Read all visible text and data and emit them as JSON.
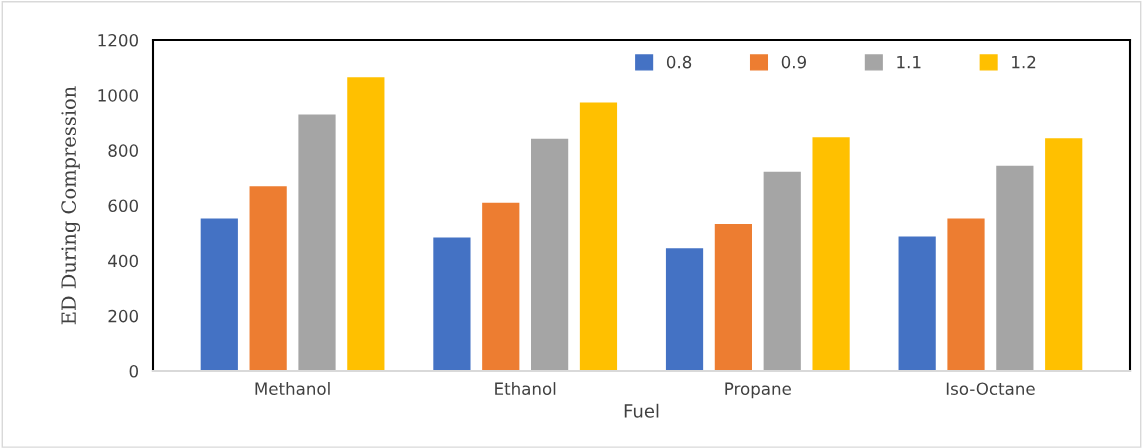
{
  "chart_data": {
    "type": "bar",
    "xlabel": "Fuel",
    "ylabel": "ED During Compression",
    "categories": [
      "Methanol",
      "Ethanol",
      "Propane",
      "Iso-Octane"
    ],
    "series": [
      {
        "name": "0.8",
        "color": "#4472c4",
        "values": [
          553,
          484,
          445,
          488
        ]
      },
      {
        "name": "0.9",
        "color": "#ed7d31",
        "values": [
          670,
          610,
          533,
          553
        ]
      },
      {
        "name": "1.1",
        "color": "#a5a5a5",
        "values": [
          930,
          842,
          722,
          744
        ]
      },
      {
        "name": "1.2",
        "color": "#ffc000",
        "values": [
          1065,
          973,
          847,
          844
        ]
      }
    ],
    "ylim": [
      0,
      1200
    ],
    "yticks": [
      0,
      200,
      400,
      600,
      800,
      1000,
      1200
    ],
    "grid": false,
    "legend": "top right"
  }
}
